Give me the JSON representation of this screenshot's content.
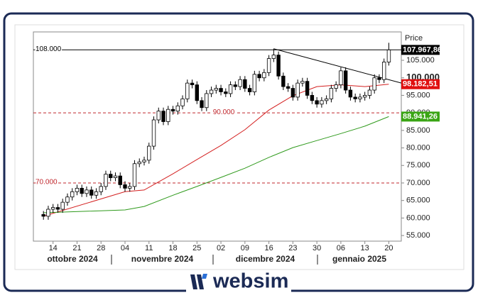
{
  "chart_data": {
    "type": "candlestick",
    "price_axis_title": "Price",
    "categories": [
      null,
      null,
      "14",
      null,
      null,
      null,
      null,
      "21",
      null,
      null,
      null,
      null,
      "28",
      null,
      null,
      null,
      null,
      "04",
      null,
      null,
      null,
      null,
      "11",
      null,
      null,
      null,
      null,
      "18",
      null,
      null,
      null,
      null,
      "25",
      null,
      null,
      null,
      null,
      "02",
      null,
      null,
      null,
      null,
      "09",
      null,
      null,
      null,
      null,
      "16",
      null,
      null,
      null,
      null,
      "23",
      null,
      null,
      null,
      null,
      "30",
      null,
      null,
      null,
      null,
      "06",
      null,
      null,
      null,
      null,
      "13",
      null,
      null,
      null,
      null,
      "20"
    ],
    "months": [
      "ottobre 2024",
      "novembre 2024",
      "dicembre 2024",
      "gennaio 2025"
    ],
    "open": [
      61000,
      60500,
      62500,
      63000,
      62500,
      64500,
      66000,
      67500,
      68500,
      67000,
      68000,
      66500,
      67500,
      69000,
      72500,
      71500,
      72000,
      69500,
      68500,
      69000,
      75500,
      76000,
      76500,
      80500,
      88000,
      90500,
      87500,
      91000,
      90500,
      92000,
      94000,
      98500,
      98000,
      93500,
      91500,
      95500,
      96500,
      97000,
      96000,
      95500,
      98000,
      97500,
      99500,
      97000,
      96000,
      101000,
      100000,
      101500,
      105500,
      106500,
      100500,
      97500,
      97000,
      94500,
      98500,
      99000,
      95000,
      93500,
      92500,
      93500,
      94000,
      97000,
      98000,
      102000,
      96500,
      94500,
      94000,
      94500,
      95000,
      96500,
      100000,
      99500,
      104500
    ],
    "high": [
      62000,
      63500,
      64000,
      64000,
      65500,
      67000,
      68500,
      69500,
      69500,
      69000,
      69000,
      68500,
      70000,
      73500,
      73500,
      73000,
      73000,
      70500,
      70000,
      76500,
      77000,
      77500,
      81500,
      89000,
      91500,
      91500,
      92000,
      92000,
      93000,
      95000,
      99500,
      99500,
      99000,
      94500,
      96500,
      97500,
      98000,
      98000,
      97000,
      99000,
      99000,
      100500,
      100500,
      98000,
      102000,
      102000,
      102500,
      106500,
      108300,
      107500,
      101500,
      98500,
      98000,
      99500,
      100000,
      100000,
      96000,
      94500,
      94500,
      95000,
      98000,
      99000,
      103000,
      103000,
      97500,
      95500,
      95500,
      96000,
      97500,
      101000,
      101000,
      105500,
      110000
    ],
    "low": [
      59500,
      59500,
      61500,
      61500,
      61500,
      63500,
      65000,
      66500,
      66000,
      66000,
      65500,
      65500,
      66500,
      68000,
      70500,
      70500,
      68500,
      67500,
      67500,
      68000,
      74500,
      75000,
      75500,
      79500,
      87000,
      86500,
      86500,
      89500,
      89500,
      91000,
      93000,
      97000,
      92500,
      90500,
      90500,
      94500,
      95500,
      95000,
      94500,
      94500,
      96500,
      96500,
      96000,
      95000,
      95000,
      99000,
      99000,
      100500,
      104500,
      99500,
      96500,
      96000,
      93500,
      93500,
      97500,
      94000,
      92500,
      91500,
      91500,
      92500,
      93000,
      96000,
      97000,
      95500,
      93500,
      93000,
      93000,
      93500,
      94000,
      95500,
      98500,
      98500,
      103500
    ],
    "close": [
      60500,
      62500,
      63000,
      62500,
      64500,
      66000,
      67500,
      68500,
      67000,
      68000,
      66500,
      67500,
      69000,
      72500,
      71500,
      72000,
      69500,
      68500,
      69000,
      75500,
      76000,
      76500,
      80500,
      88000,
      90500,
      87500,
      91000,
      90500,
      92000,
      94000,
      98500,
      98000,
      93500,
      91500,
      95500,
      96500,
      97000,
      96000,
      95500,
      98000,
      97500,
      99500,
      97000,
      96000,
      101000,
      100000,
      101500,
      105500,
      106500,
      100500,
      97500,
      97000,
      94500,
      98500,
      99000,
      95000,
      93500,
      92500,
      93500,
      94000,
      97000,
      98000,
      102000,
      96500,
      94500,
      94000,
      94500,
      95000,
      96500,
      100000,
      99500,
      104500,
      107967.86
    ],
    "up_color": "#ffffff",
    "down_color": "#000000",
    "series": [
      {
        "color": "#d42020",
        "x": [
          0,
          17,
          21,
          27,
          32,
          37,
          42,
          47,
          52,
          57,
          62,
          67,
          72
        ],
        "values": [
          60500,
          67500,
          68000,
          72600,
          76700,
          80700,
          85200,
          90800,
          94900,
          97500,
          98000,
          97500,
          98182.51
        ]
      },
      {
        "color": "#2f9a1c",
        "x": [
          0,
          17,
          21,
          27,
          32,
          37,
          42,
          47,
          52,
          57,
          62,
          67,
          72
        ],
        "values": [
          61500,
          62300,
          63300,
          66500,
          69000,
          71600,
          74200,
          77300,
          80100,
          82100,
          84100,
          86200,
          88941.26
        ]
      }
    ],
    "levels": [
      {
        "value": 108000,
        "label": "108.000",
        "color": "#000000",
        "style": "solid"
      },
      {
        "value": 90000,
        "label": "90.000",
        "color": "#c0272d",
        "style": "dashed"
      },
      {
        "value": 70000,
        "label": "70.000",
        "color": "#c0272d",
        "style": "dashed"
      }
    ],
    "trendline": {
      "color": "#000000",
      "x": [
        48,
        76
      ],
      "values": [
        108300,
        98000
      ]
    },
    "price_tags": [
      {
        "value": 107967.86,
        "label": "107.967,86",
        "color": "#000000"
      },
      {
        "value": 98182.51,
        "label": "98.182,51",
        "color": "#e01010"
      },
      {
        "value": 88941.26,
        "label": "88.941,26",
        "color": "#3aa515"
      }
    ],
    "ylim": [
      53400,
      113100
    ],
    "xlim": [
      -2.1,
      74.6
    ],
    "yticks": [
      {
        "value": 55000,
        "label": "55.000"
      },
      {
        "value": 60000,
        "label": "60.000"
      },
      {
        "value": 65000,
        "label": "65.000"
      },
      {
        "value": 70000,
        "label": "70.000"
      },
      {
        "value": 75000,
        "label": "75.000"
      },
      {
        "value": 80000,
        "label": "80.000"
      },
      {
        "value": 85000,
        "label": "85.000"
      },
      {
        "value": 90000,
        "label": "90.000"
      },
      {
        "value": 95000,
        "label": "95.000"
      },
      {
        "value": 100000,
        "label": "100.000"
      },
      {
        "value": 105000,
        "label": "105.000"
      }
    ],
    "brand": "websim"
  }
}
